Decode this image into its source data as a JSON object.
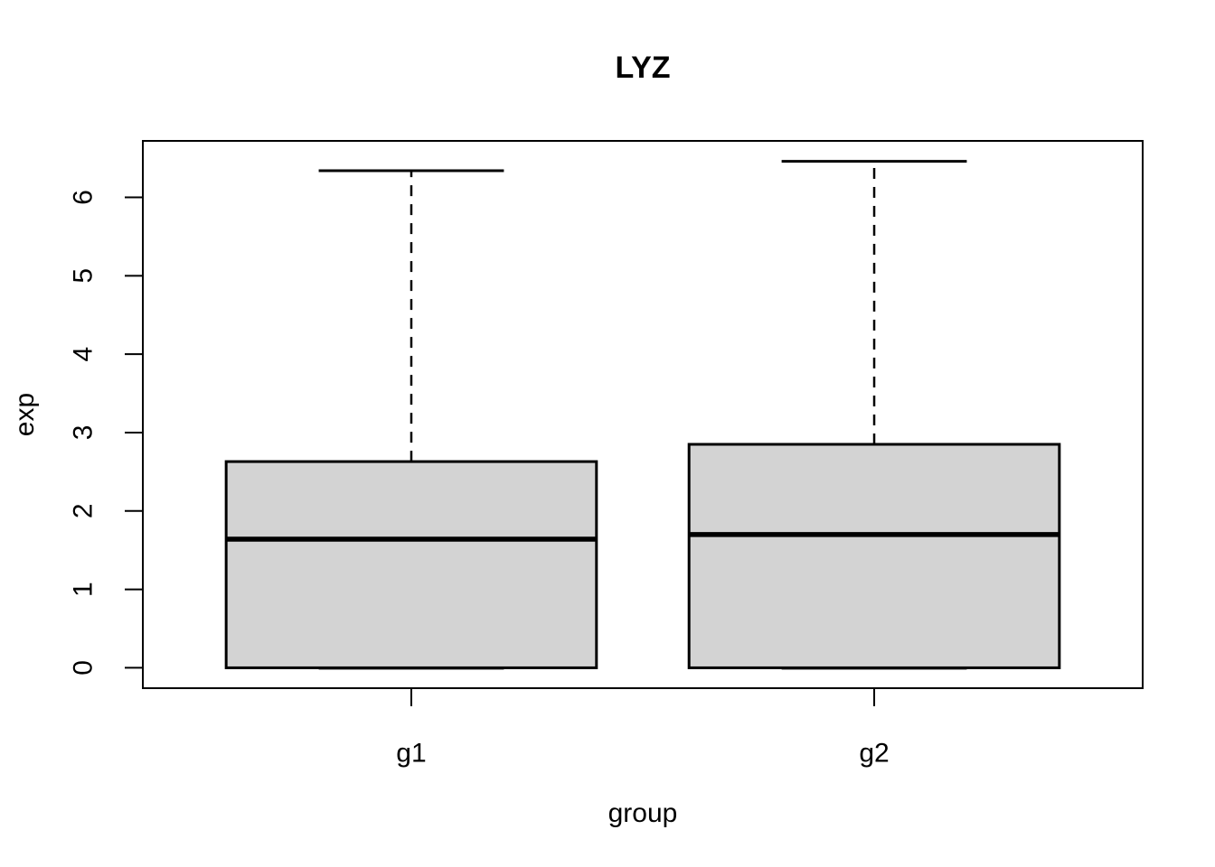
{
  "title": "LYZ",
  "chart_data": {
    "type": "boxplot",
    "title": "LYZ",
    "xlabel": "group",
    "ylabel": "exp",
    "categories": [
      "g1",
      "g2"
    ],
    "x_positions": [
      1,
      2
    ],
    "xlim": [
      0.42,
      2.58
    ],
    "ylim": [
      -0.26,
      6.72
    ],
    "y_ticks": [
      0,
      1,
      2,
      3,
      4,
      5,
      6
    ],
    "box_width": 0.8,
    "staple_width": 0.4,
    "grid": false,
    "legend": "none",
    "series": [
      {
        "name": "g1",
        "whisker_low": 0,
        "q1": 0,
        "median": 1.64,
        "q3": 2.63,
        "whisker_high": 6.34
      },
      {
        "name": "g2",
        "whisker_low": 0,
        "q1": 0,
        "median": 1.7,
        "q3": 2.85,
        "whisker_high": 6.46
      }
    ],
    "box_fill": "#d3d3d3",
    "line_color": "#000000",
    "background": "#ffffff"
  }
}
